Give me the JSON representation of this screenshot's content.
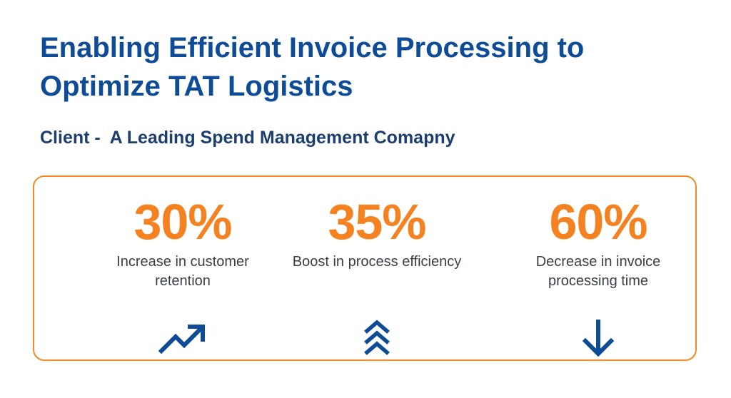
{
  "header": {
    "title": "Enabling Efficient Invoice Processing to Optimize TAT Logistics",
    "subtitle": "Client -  A Leading Spend Management Comapny"
  },
  "colors": {
    "title": "#0f4c97",
    "accent": "#f58220",
    "border": "#f08a24",
    "icon": "#0f4c97"
  },
  "stats": [
    {
      "value": "30%",
      "label": "Increase in customer retention",
      "icon": "trending-up-icon"
    },
    {
      "value": "35%",
      "label": "Boost in process efficiency",
      "icon": "chevrons-up-icon"
    },
    {
      "value": "60%",
      "label": "Decrease in invoice processing time",
      "icon": "arrow-down-icon"
    }
  ]
}
